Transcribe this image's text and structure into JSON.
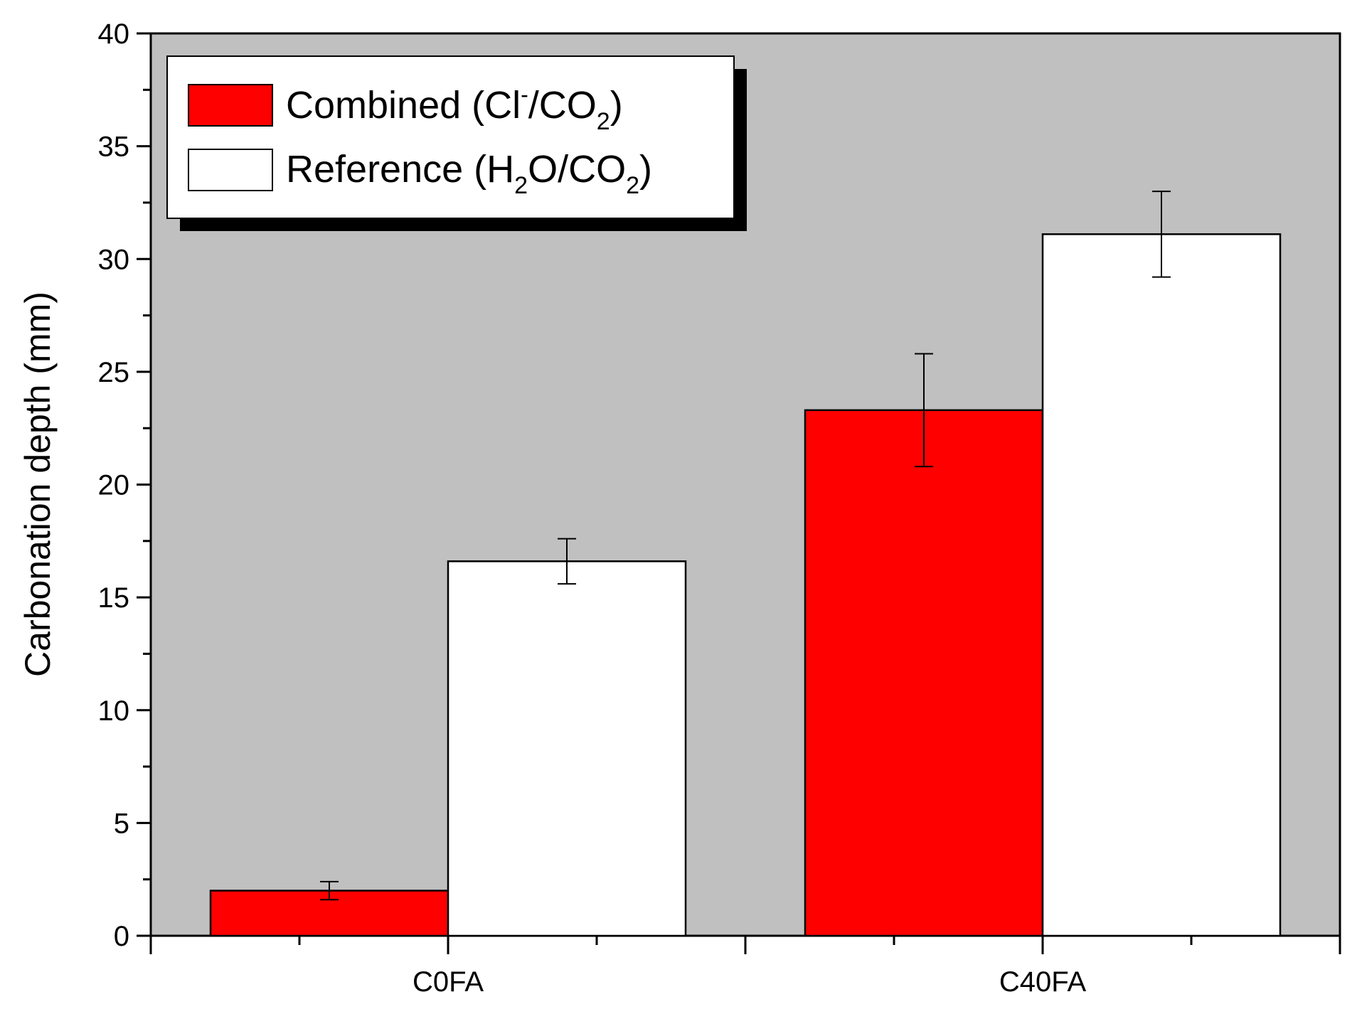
{
  "chart_data": {
    "type": "bar",
    "title": "",
    "xlabel": "",
    "ylabel": "Carbonation depth (mm)",
    "ylim": [
      0,
      40
    ],
    "yticks": [
      "0",
      "5",
      "10",
      "15",
      "20",
      "25",
      "30",
      "35",
      "40"
    ],
    "categories": [
      "C0FA",
      "C40FA"
    ],
    "series": [
      {
        "name": "Combined (Cl⁻/CO₂)",
        "legend_base": "Combined (Cl",
        "legend_sup": "-",
        "legend_mid": "/CO",
        "legend_sub": "2",
        "legend_end": ")",
        "color": "#ff0000",
        "values": [
          2.0,
          23.3
        ],
        "errors": [
          0.4,
          2.5
        ]
      },
      {
        "name": "Reference (H₂O/CO₂)",
        "legend_base": "Reference (H",
        "legend_sub1": "2",
        "legend_mid": "O/CO",
        "legend_sub2": "2",
        "legend_end": ")",
        "color": "#ffffff",
        "values": [
          16.6,
          31.1
        ],
        "errors": [
          1.0,
          1.9
        ]
      }
    ],
    "plot_background": "#c0c0c0",
    "legend_position": "top-left"
  }
}
